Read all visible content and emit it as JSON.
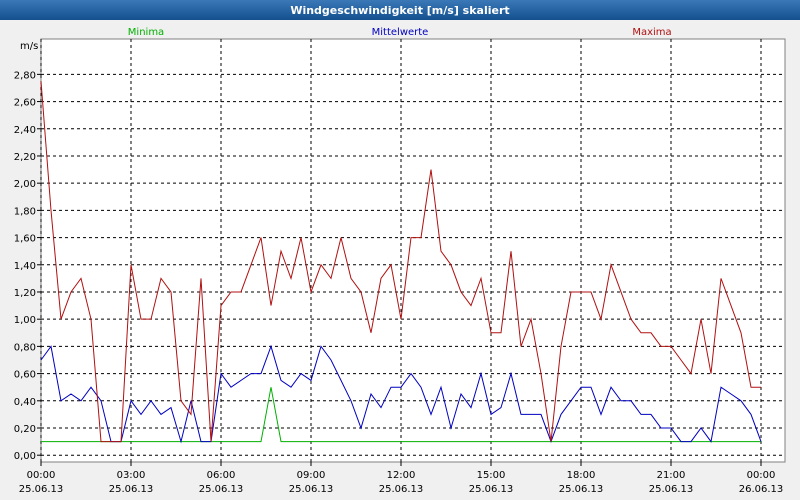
{
  "chart_data": {
    "type": "line",
    "title": "Windgeschwindigkeit [m/s] skaliert",
    "y_label": "m/s",
    "x": [
      0,
      20,
      40,
      60,
      80,
      100,
      120,
      140,
      160,
      180,
      200,
      220,
      240,
      260,
      280,
      300,
      320,
      340,
      360,
      380,
      400,
      420,
      440,
      460,
      480,
      500,
      520,
      540,
      560,
      580,
      600,
      620,
      640,
      660,
      680,
      700,
      720,
      740,
      760,
      780,
      800,
      820,
      840,
      860,
      880,
      900,
      920,
      940,
      960,
      980,
      1000,
      1020,
      1040,
      1060,
      1080,
      1100,
      1120,
      1140,
      1160,
      1180,
      1200,
      1220,
      1240,
      1260,
      1280,
      1300,
      1320,
      1340,
      1360,
      1380,
      1400,
      1420,
      1440
    ],
    "series": [
      {
        "name": "Minima",
        "color": "#00b000",
        "values": [
          0.1,
          0.1,
          0.1,
          0.1,
          0.1,
          0.1,
          0.1,
          0.1,
          0.1,
          0.1,
          0.1,
          0.1,
          0.1,
          0.1,
          0.1,
          0.1,
          0.1,
          0.1,
          0.1,
          0.1,
          0.1,
          0.1,
          0.1,
          0.5,
          0.1,
          0.1,
          0.1,
          0.1,
          0.1,
          0.1,
          0.1,
          0.1,
          0.1,
          0.1,
          0.1,
          0.1,
          0.1,
          0.1,
          0.1,
          0.1,
          0.1,
          0.1,
          0.1,
          0.1,
          0.1,
          0.1,
          0.1,
          0.1,
          0.1,
          0.1,
          0.1,
          0.1,
          0.1,
          0.1,
          0.1,
          0.1,
          0.1,
          0.1,
          0.1,
          0.1,
          0.1,
          0.1,
          0.1,
          0.1,
          0.1,
          0.1,
          0.1,
          0.1,
          0.1,
          0.1,
          0.1,
          0.1,
          0.1
        ]
      },
      {
        "name": "Mittelwerte",
        "color": "#0000c0",
        "values": [
          0.7,
          0.8,
          0.4,
          0.45,
          0.4,
          0.5,
          0.4,
          0.1,
          0.1,
          0.4,
          0.3,
          0.4,
          0.3,
          0.35,
          0.1,
          0.4,
          0.1,
          0.1,
          0.6,
          0.5,
          0.55,
          0.6,
          0.6,
          0.8,
          0.55,
          0.5,
          0.6,
          0.55,
          0.8,
          0.7,
          0.55,
          0.4,
          0.2,
          0.45,
          0.35,
          0.5,
          0.5,
          0.6,
          0.5,
          0.3,
          0.5,
          0.2,
          0.45,
          0.35,
          0.6,
          0.3,
          0.35,
          0.6,
          0.3,
          0.3,
          0.3,
          0.1,
          0.3,
          0.4,
          0.5,
          0.5,
          0.3,
          0.5,
          0.4,
          0.4,
          0.3,
          0.3,
          0.2,
          0.2,
          0.1,
          0.1,
          0.2,
          0.1,
          0.5,
          0.45,
          0.4,
          0.3,
          0.1
        ]
      },
      {
        "name": "Maxima",
        "color": "#b01010",
        "values": [
          2.75,
          1.8,
          1.0,
          1.2,
          1.3,
          1.0,
          0.1,
          0.1,
          0.1,
          1.4,
          1.0,
          1.0,
          1.3,
          1.2,
          0.4,
          0.3,
          1.3,
          0.1,
          1.1,
          1.2,
          1.2,
          1.4,
          1.6,
          1.1,
          1.5,
          1.3,
          1.6,
          1.2,
          1.4,
          1.3,
          1.6,
          1.3,
          1.2,
          0.9,
          1.3,
          1.4,
          1.0,
          1.6,
          1.6,
          2.1,
          1.5,
          1.4,
          1.2,
          1.1,
          1.3,
          0.9,
          0.9,
          1.5,
          0.8,
          1.0,
          0.6,
          0.1,
          0.8,
          1.2,
          1.2,
          1.2,
          1.0,
          1.4,
          1.2,
          1.0,
          0.9,
          0.9,
          0.8,
          0.8,
          0.7,
          0.6,
          1.0,
          0.6,
          1.3,
          1.1,
          0.9,
          0.5,
          0.5
        ]
      }
    ],
    "xlim": [
      0,
      1440
    ],
    "xticks": [
      {
        "value": 0,
        "label": "00:00\n25.06.13"
      },
      {
        "value": 180,
        "label": "03:00\n25.06.13"
      },
      {
        "value": 360,
        "label": "06:00\n25.06.13"
      },
      {
        "value": 540,
        "label": "09:00\n25.06.13"
      },
      {
        "value": 720,
        "label": "12:00\n25.06.13"
      },
      {
        "value": 900,
        "label": "15:00\n25.06.13"
      },
      {
        "value": 1080,
        "label": "18:00\n25.06.13"
      },
      {
        "value": 1260,
        "label": "21:00\n25.06.13"
      },
      {
        "value": 1440,
        "label": "00:00\n26.06.13"
      }
    ],
    "ylim": [
      -0.05,
      3.06
    ],
    "yticks": [
      {
        "value": 0,
        "label": "0,00"
      },
      {
        "value": 0.2,
        "label": "0,20"
      },
      {
        "value": 0.4,
        "label": "0,40"
      },
      {
        "value": 0.6,
        "label": "0,60"
      },
      {
        "value": 0.8,
        "label": "0,80"
      },
      {
        "value": 1.0,
        "label": "1,00"
      },
      {
        "value": 1.2,
        "label": "1,20"
      },
      {
        "value": 1.4,
        "label": "1,40"
      },
      {
        "value": 1.6,
        "label": "1,60"
      },
      {
        "value": 1.8,
        "label": "1,80"
      },
      {
        "value": 2.0,
        "label": "2,00"
      },
      {
        "value": 2.2,
        "label": "2,20"
      },
      {
        "value": 2.4,
        "label": "2,40"
      },
      {
        "value": 2.6,
        "label": "2,60"
      },
      {
        "value": 2.8,
        "label": "2,80"
      }
    ],
    "grid": true
  }
}
